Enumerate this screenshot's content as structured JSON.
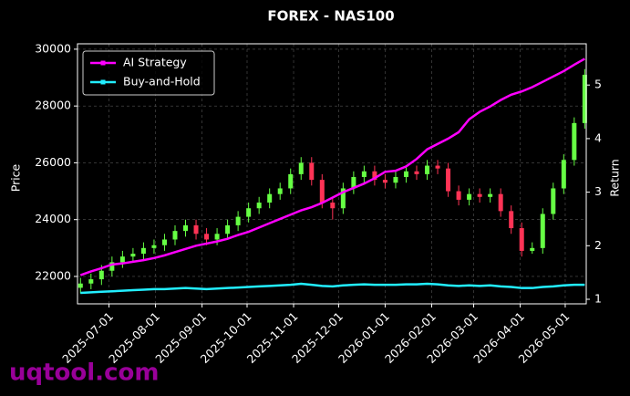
{
  "chart_data": {
    "type": "candlestick",
    "title": "FOREX - NAS100",
    "ylabel": "Price",
    "y2label": "Return",
    "x": [
      "2025-06-12",
      "2025-06-19",
      "2025-06-26",
      "2025-07-03",
      "2025-07-10",
      "2025-07-17",
      "2025-07-24",
      "2025-07-31",
      "2025-08-07",
      "2025-08-14",
      "2025-08-21",
      "2025-08-28",
      "2025-09-04",
      "2025-09-11",
      "2025-09-18",
      "2025-09-25",
      "2025-10-02",
      "2025-10-09",
      "2025-10-16",
      "2025-10-23",
      "2025-10-30",
      "2025-11-06",
      "2025-11-13",
      "2025-11-20",
      "2025-11-27",
      "2025-12-04",
      "2025-12-11",
      "2025-12-18",
      "2025-12-25",
      "2026-01-01",
      "2026-01-08",
      "2026-01-15",
      "2026-01-22",
      "2026-01-29",
      "2026-02-05",
      "2026-02-12",
      "2026-02-19",
      "2026-02-26",
      "2026-03-05",
      "2026-03-12",
      "2026-03-19",
      "2026-03-26",
      "2026-04-02",
      "2026-04-09",
      "2026-04-16",
      "2026-04-23",
      "2026-04-30",
      "2026-05-07",
      "2026-05-14"
    ],
    "open": [
      21600,
      21750,
      21900,
      22200,
      22500,
      22700,
      22800,
      23000,
      23100,
      23300,
      23600,
      23800,
      23500,
      23300,
      23500,
      23800,
      24100,
      24400,
      24600,
      24900,
      25100,
      25600,
      26000,
      25400,
      24600,
      24400,
      25100,
      25500,
      25700,
      25400,
      25300,
      25500,
      25700,
      25600,
      25900,
      25800,
      25000,
      24700,
      24900,
      24800,
      24900,
      24300,
      23700,
      22900,
      23000,
      24200,
      25100,
      26100,
      27400
    ],
    "high": [
      21950,
      22100,
      22400,
      22700,
      22900,
      23000,
      23200,
      23300,
      23500,
      23800,
      24000,
      24000,
      23700,
      23700,
      24000,
      24300,
      24600,
      24800,
      25100,
      25300,
      25800,
      26200,
      26200,
      25600,
      24800,
      25300,
      25700,
      25900,
      25900,
      25600,
      25700,
      25900,
      25900,
      26100,
      26100,
      26000,
      25200,
      25100,
      25100,
      25100,
      25100,
      24500,
      23900,
      23200,
      24400,
      25300,
      26300,
      27600,
      29300
    ],
    "low": [
      21400,
      21550,
      21700,
      22000,
      22300,
      22500,
      22600,
      22800,
      22900,
      23100,
      23400,
      23300,
      23100,
      23100,
      23300,
      23600,
      23900,
      24200,
      24400,
      24700,
      24900,
      25400,
      25200,
      24400,
      24000,
      24200,
      24900,
      25300,
      25200,
      25100,
      25100,
      25300,
      25400,
      25400,
      25600,
      24800,
      24500,
      24500,
      24600,
      24600,
      24100,
      23500,
      22700,
      22800,
      22800,
      24000,
      24900,
      25900,
      27200
    ],
    "close": [
      21750,
      21900,
      22200,
      22500,
      22700,
      22800,
      23000,
      23100,
      23300,
      23600,
      23800,
      23500,
      23300,
      23500,
      23800,
      24100,
      24400,
      24600,
      24900,
      25100,
      25600,
      26000,
      25400,
      24600,
      24400,
      25100,
      25500,
      25700,
      25400,
      25300,
      25500,
      25700,
      25600,
      25900,
      25800,
      25000,
      24700,
      24900,
      24800,
      24900,
      24300,
      23700,
      22900,
      23000,
      24200,
      25100,
      26100,
      27400,
      29100
    ],
    "up_color": "#66ff44",
    "down_color": "#ff3355",
    "series": [
      {
        "name": "AI Strategy",
        "color": "#ff00ff",
        "axis": "y2",
        "values": [
          1.45,
          1.52,
          1.58,
          1.65,
          1.67,
          1.7,
          1.73,
          1.77,
          1.82,
          1.88,
          1.94,
          2.0,
          2.04,
          2.08,
          2.13,
          2.2,
          2.26,
          2.34,
          2.42,
          2.5,
          2.58,
          2.66,
          2.72,
          2.8,
          2.9,
          3.0,
          3.08,
          3.16,
          3.26,
          3.38,
          3.4,
          3.48,
          3.62,
          3.8,
          3.9,
          4.0,
          4.12,
          4.36,
          4.5,
          4.6,
          4.72,
          4.82,
          4.88,
          4.96,
          5.06,
          5.16,
          5.26,
          5.38,
          5.49
        ]
      },
      {
        "name": "Buy-and-Hold",
        "color": "#22eeff",
        "axis": "y2",
        "values": [
          1.12,
          1.13,
          1.14,
          1.15,
          1.16,
          1.17,
          1.18,
          1.19,
          1.19,
          1.2,
          1.21,
          1.2,
          1.19,
          1.2,
          1.21,
          1.22,
          1.23,
          1.24,
          1.25,
          1.26,
          1.27,
          1.29,
          1.27,
          1.25,
          1.24,
          1.26,
          1.27,
          1.28,
          1.27,
          1.27,
          1.27,
          1.28,
          1.28,
          1.29,
          1.28,
          1.26,
          1.25,
          1.26,
          1.25,
          1.26,
          1.24,
          1.23,
          1.21,
          1.21,
          1.23,
          1.24,
          1.26,
          1.27,
          1.27
        ]
      }
    ],
    "xlim": [
      "2025-06-10",
      "2026-05-15"
    ],
    "xticks": [
      "2025-07-01",
      "2025-08-01",
      "2025-09-01",
      "2025-10-01",
      "2025-11-01",
      "2025-12-01",
      "2026-01-01",
      "2026-02-01",
      "2026-03-01",
      "2026-04-01",
      "2026-05-01"
    ],
    "ylim": [
      21035,
      30190
    ],
    "yticks": [
      22000,
      24000,
      26000,
      28000,
      30000
    ],
    "y2lim": [
      0.915,
      5.77
    ],
    "y2ticks": [
      1,
      2,
      3,
      4,
      5
    ],
    "grid": true,
    "legend": "upper left",
    "watermark": "uqtool.com"
  }
}
